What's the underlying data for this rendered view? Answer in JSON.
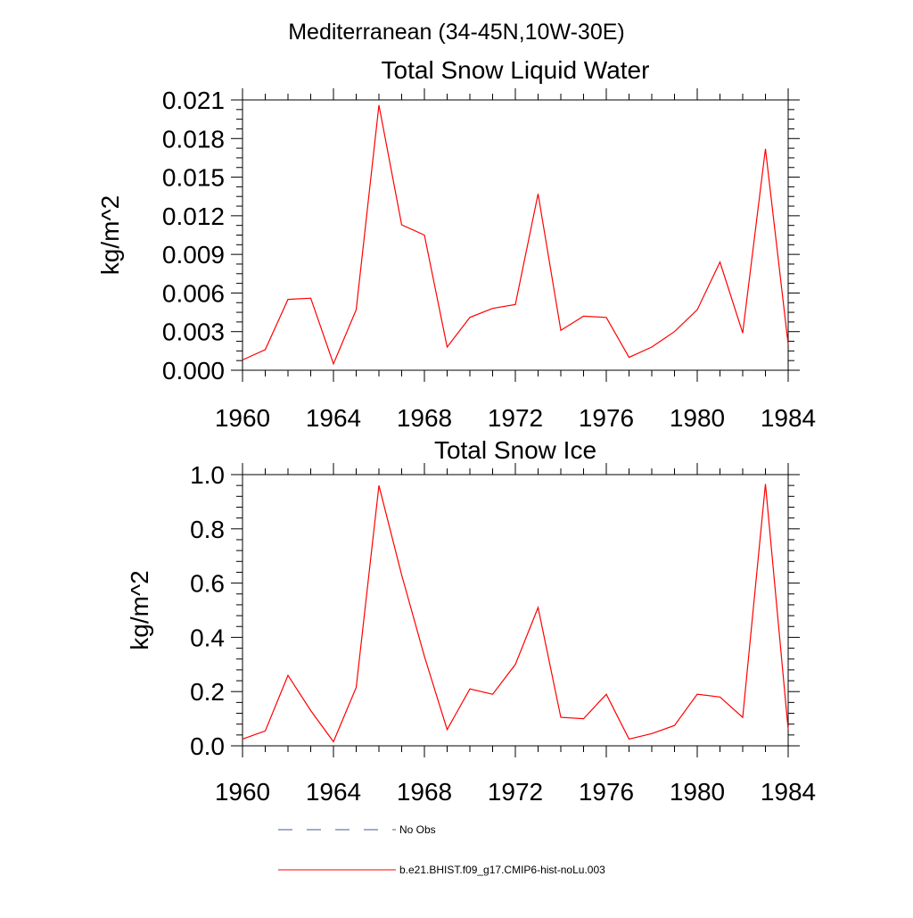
{
  "figure": {
    "title": "Mediterranean (34-45N,10W-30E)"
  },
  "chart_data": [
    {
      "type": "line",
      "title": "Total Snow Liquid Water",
      "xlabel": "",
      "ylabel": "kg/m^2",
      "xlim": [
        1960,
        1984
      ],
      "ylim": [
        0.0,
        0.021
      ],
      "xticks": [
        "1960",
        "1964",
        "1968",
        "1972",
        "1976",
        "1980",
        "1984"
      ],
      "yticks": [
        "0.000",
        "0.003",
        "0.006",
        "0.009",
        "0.012",
        "0.015",
        "0.018",
        "0.021"
      ],
      "x": [
        1960,
        1961,
        1962,
        1963,
        1964,
        1965,
        1966,
        1967,
        1968,
        1969,
        1970,
        1971,
        1972,
        1973,
        1974,
        1975,
        1976,
        1977,
        1978,
        1979,
        1980,
        1981,
        1982,
        1983,
        1984
      ],
      "series": [
        {
          "name": "b.e21.BHIST.f09_g17.CMIP6-hist-noLu.003",
          "color": "#ff0000",
          "values": [
            0.0008,
            0.0016,
            0.0055,
            0.0056,
            0.0005,
            0.0047,
            0.0206,
            0.0113,
            0.0105,
            0.0018,
            0.0041,
            0.0048,
            0.0051,
            0.0137,
            0.0031,
            0.0042,
            0.0041,
            0.001,
            0.0018,
            0.003,
            0.0047,
            0.0084,
            0.0029,
            0.0172,
            0.002
          ]
        }
      ],
      "grid": false
    },
    {
      "type": "line",
      "title": "Total Snow Ice",
      "xlabel": "",
      "ylabel": "kg/m^2",
      "xlim": [
        1960,
        1984
      ],
      "ylim": [
        0.0,
        1.0
      ],
      "xticks": [
        "1960",
        "1964",
        "1968",
        "1972",
        "1976",
        "1980",
        "1984"
      ],
      "yticks": [
        "0.0",
        "0.2",
        "0.4",
        "0.6",
        "0.8",
        "1.0"
      ],
      "x": [
        1960,
        1961,
        1962,
        1963,
        1964,
        1965,
        1966,
        1967,
        1968,
        1969,
        1970,
        1971,
        1972,
        1973,
        1974,
        1975,
        1976,
        1977,
        1978,
        1979,
        1980,
        1981,
        1982,
        1983,
        1984
      ],
      "series": [
        {
          "name": "b.e21.BHIST.f09_g17.CMIP6-hist-noLu.003",
          "color": "#ff0000",
          "values": [
            0.025,
            0.055,
            0.26,
            0.13,
            0.015,
            0.215,
            0.96,
            0.63,
            0.33,
            0.06,
            0.21,
            0.19,
            0.3,
            0.51,
            0.105,
            0.1,
            0.19,
            0.025,
            0.045,
            0.075,
            0.19,
            0.18,
            0.105,
            0.965,
            0.06
          ]
        }
      ],
      "grid": false
    }
  ],
  "legend": {
    "placement": "bottom",
    "items": [
      {
        "label": "No Obs",
        "color": "#4b5a8c",
        "style": "dashed"
      },
      {
        "label": "b.e21.BHIST.f09_g17.CMIP6-hist-noLu.003",
        "color": "#ff0000",
        "style": "solid"
      }
    ]
  }
}
